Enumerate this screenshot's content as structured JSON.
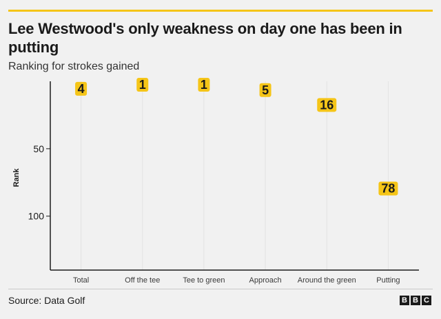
{
  "header": {
    "title": "Lee Westwood's only weakness on day one has been in putting",
    "subtitle": "Ranking for strokes gained"
  },
  "footer": {
    "source": "Source: Data Golf",
    "logo_letters": [
      "B",
      "B",
      "C"
    ]
  },
  "colors": {
    "accent": "#f5c518",
    "label_bg": "#f5c518",
    "text": "#1a1a1a",
    "background": "#f1f1f1"
  },
  "chart_data": {
    "type": "scatter",
    "title": "Lee Westwood's only weakness on day one has been in putting",
    "subtitle": "Ranking for strokes gained",
    "ylabel": "Rank",
    "xlabel": "",
    "y_inverted": true,
    "ylim": [
      0,
      140
    ],
    "yticks": [
      50,
      100
    ],
    "grid": "vertical",
    "categories": [
      "Total",
      "Off the tee",
      "Tee to green",
      "Approach",
      "Around the green",
      "Putting"
    ],
    "values": [
      4,
      1,
      1,
      5,
      16,
      78
    ]
  }
}
